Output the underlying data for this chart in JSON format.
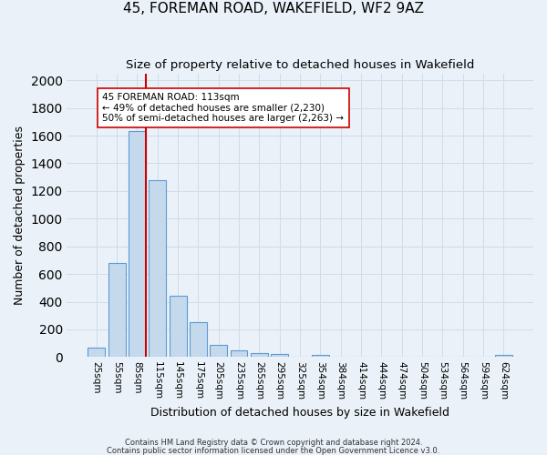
{
  "title": "45, FOREMAN ROAD, WAKEFIELD, WF2 9AZ",
  "subtitle": "Size of property relative to detached houses in Wakefield",
  "xlabel": "Distribution of detached houses by size in Wakefield",
  "ylabel": "Number of detached properties",
  "footer_line1": "Contains HM Land Registry data © Crown copyright and database right 2024.",
  "footer_line2": "Contains public sector information licensed under the Open Government Licence v3.0.",
  "bar_labels": [
    "25sqm",
    "55sqm",
    "85sqm",
    "115sqm",
    "145sqm",
    "175sqm",
    "205sqm",
    "235sqm",
    "265sqm",
    "295sqm",
    "325sqm",
    "354sqm",
    "384sqm",
    "414sqm",
    "444sqm",
    "474sqm",
    "504sqm",
    "534sqm",
    "564sqm",
    "594sqm",
    "624sqm"
  ],
  "bar_values": [
    65,
    680,
    1630,
    1280,
    440,
    255,
    90,
    50,
    30,
    25,
    0,
    15,
    0,
    0,
    0,
    0,
    0,
    0,
    0,
    0,
    15
  ],
  "bar_color": "#c5d9ed",
  "bar_edge_color": "#5b9bd5",
  "background_color": "#eaf1f8",
  "vline_color": "#cc0000",
  "annotation_title": "45 FOREMAN ROAD: 113sqm",
  "annotation_line1": "← 49% of detached houses are smaller (2,230)",
  "annotation_line2": "50% of semi-detached houses are larger (2,263) →",
  "annotation_box_color": "#ffffff",
  "annotation_box_edge_color": "#cc0000",
  "ylim": [
    0,
    2050
  ],
  "yticks": [
    0,
    200,
    400,
    600,
    800,
    1000,
    1200,
    1400,
    1600,
    1800,
    2000
  ],
  "grid_color": "#d0dce8",
  "title_fontsize": 11,
  "subtitle_fontsize": 9.5,
  "axis_label_fontsize": 9,
  "tick_fontsize": 7.5,
  "footer_fontsize": 6,
  "annotation_fontsize": 7.5
}
